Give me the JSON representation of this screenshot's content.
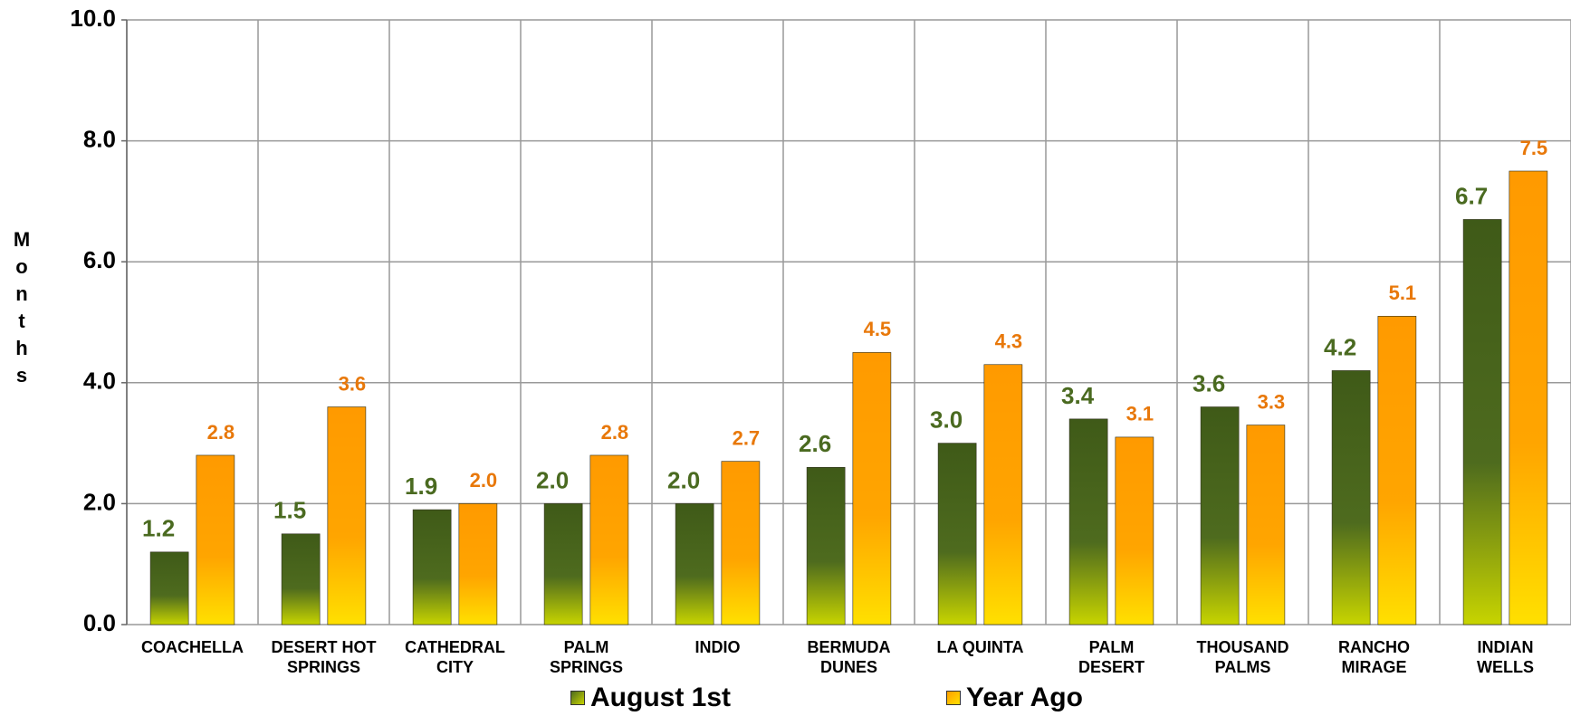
{
  "chart_data": {
    "type": "bar",
    "y_label": "Months",
    "categories": [
      "COACHELLA",
      "DESERT HOT\nSPRINGS",
      "CATHEDRAL\nCITY",
      "PALM\nSPRINGS",
      "INDIO",
      "BERMUDA\nDUNES",
      "LA QUINTA",
      "PALM\nDESERT",
      "THOUSAND\nPALMS",
      "RANCHO\nMIRAGE",
      "INDIAN\nWELLS"
    ],
    "series": [
      {
        "name": "August 1st",
        "color": "#4e6b1e",
        "values": [
          1.2,
          1.5,
          1.9,
          2.0,
          2.0,
          2.6,
          3.0,
          3.4,
          3.6,
          4.2,
          6.7
        ],
        "value_labels": [
          "1.2",
          "1.5",
          "1.9",
          "2.0",
          "2.0",
          "2.6",
          "3.0",
          "3.4",
          "3.6",
          "4.2",
          "6.7"
        ]
      },
      {
        "name": "Year Ago",
        "color": "#ff9f00",
        "values": [
          2.8,
          3.6,
          2.0,
          2.8,
          2.7,
          4.5,
          4.3,
          3.1,
          3.3,
          5.1,
          7.5
        ],
        "value_labels": [
          "2.8",
          "3.6",
          "2.0",
          "2.8",
          "2.7",
          "4.5",
          "4.3",
          "3.1",
          "3.3",
          "5.1",
          "7.5"
        ]
      }
    ],
    "ylim": [
      0,
      10
    ],
    "yticks": [
      {
        "value": 0,
        "label": "0.0"
      },
      {
        "value": 2,
        "label": "2.0"
      },
      {
        "value": 4,
        "label": "4.0"
      },
      {
        "value": 6,
        "label": "6.0"
      },
      {
        "value": 8,
        "label": "8.0"
      },
      {
        "value": 10,
        "label": "10.0"
      }
    ],
    "grid": true,
    "legend": "bottom"
  }
}
